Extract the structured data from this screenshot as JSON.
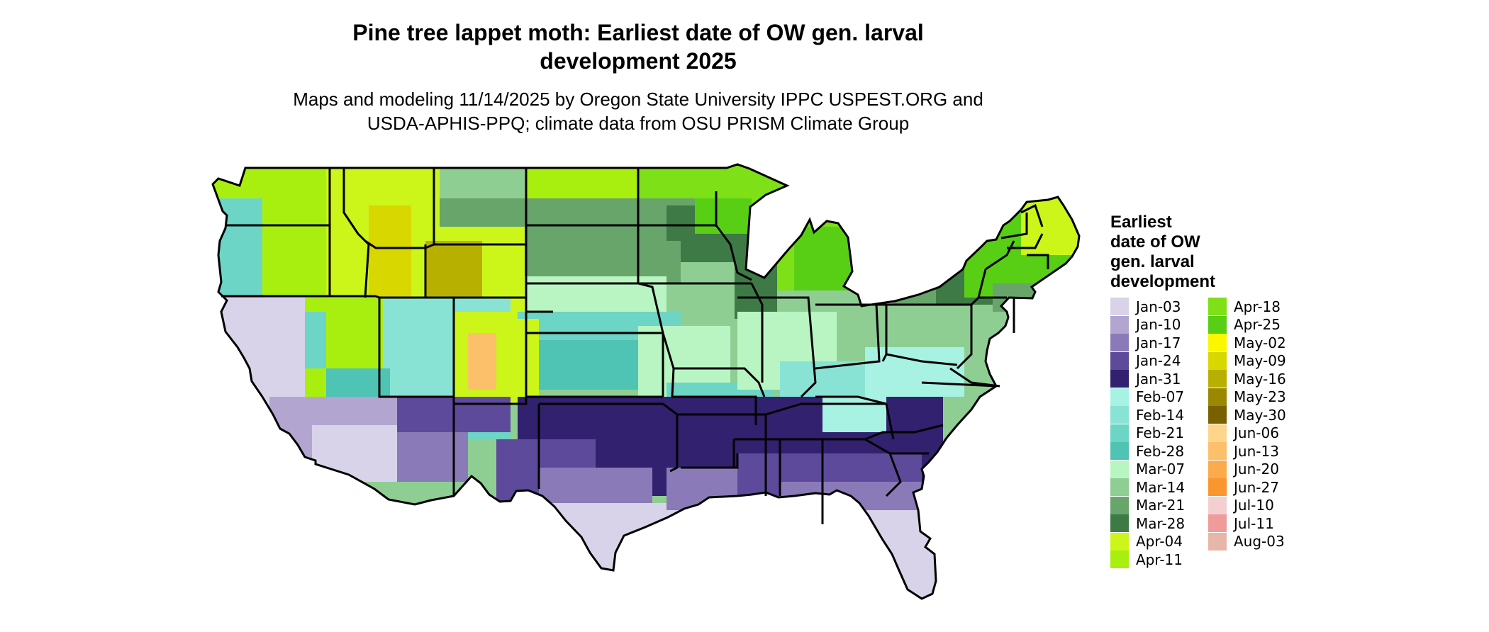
{
  "title_line1": "Pine tree lappet moth: Earliest date of OW gen. larval",
  "title_line2": "development 2025",
  "subtitle_line1": "Maps and modeling 11/14/2025 by Oregon State University IPPC USPEST.ORG and",
  "subtitle_line2": "USDA-APHIS-PPQ; climate data from OSU PRISM Climate Group",
  "legend": {
    "title": [
      "Earliest",
      "date of OW",
      "gen. larval",
      "development"
    ],
    "items": [
      {
        "label": "Jan-03",
        "color": "#d9d3ea"
      },
      {
        "label": "Jan-10",
        "color": "#b2a6d1"
      },
      {
        "label": "Jan-17",
        "color": "#8b7ab8"
      },
      {
        "label": "Jan-24",
        "color": "#5e4a9a"
      },
      {
        "label": "Jan-31",
        "color": "#32216f"
      },
      {
        "label": "Feb-07",
        "color": "#a8f2e3"
      },
      {
        "label": "Feb-14",
        "color": "#89e3d5"
      },
      {
        "label": "Feb-21",
        "color": "#6cd5c5"
      },
      {
        "label": "Feb-28",
        "color": "#4fc3b4"
      },
      {
        "label": "Mar-07",
        "color": "#b8f5c2"
      },
      {
        "label": "Mar-14",
        "color": "#8fce93"
      },
      {
        "label": "Mar-21",
        "color": "#67a56b"
      },
      {
        "label": "Mar-28",
        "color": "#3e7a45"
      },
      {
        "label": "Apr-04",
        "color": "#ccf51a"
      },
      {
        "label": "Apr-11",
        "color": "#a8ef10"
      },
      {
        "label": "Apr-18",
        "color": "#7ee016"
      },
      {
        "label": "Apr-25",
        "color": "#58cf15"
      },
      {
        "label": "May-02",
        "color": "#fbf700"
      },
      {
        "label": "May-09",
        "color": "#d8d700"
      },
      {
        "label": "May-16",
        "color": "#b8b000"
      },
      {
        "label": "May-23",
        "color": "#998800"
      },
      {
        "label": "May-30",
        "color": "#7a6000"
      },
      {
        "label": "Jun-06",
        "color": "#fed58a"
      },
      {
        "label": "Jun-13",
        "color": "#fdc06a"
      },
      {
        "label": "Jun-20",
        "color": "#fcab4c"
      },
      {
        "label": "Jun-27",
        "color": "#fb962f"
      },
      {
        "label": "Jul-10",
        "color": "#f3cfd2"
      },
      {
        "label": "Jul-11",
        "color": "#f09b9b"
      },
      {
        "label": "Aug-03",
        "color": "#e6b7a9"
      }
    ]
  },
  "map": {
    "region": "contiguous-united-states",
    "boundaries": "state",
    "pattern": "dates progress from Jan in the Southeast and Southwest to Apr-May in the North and mountains"
  }
}
